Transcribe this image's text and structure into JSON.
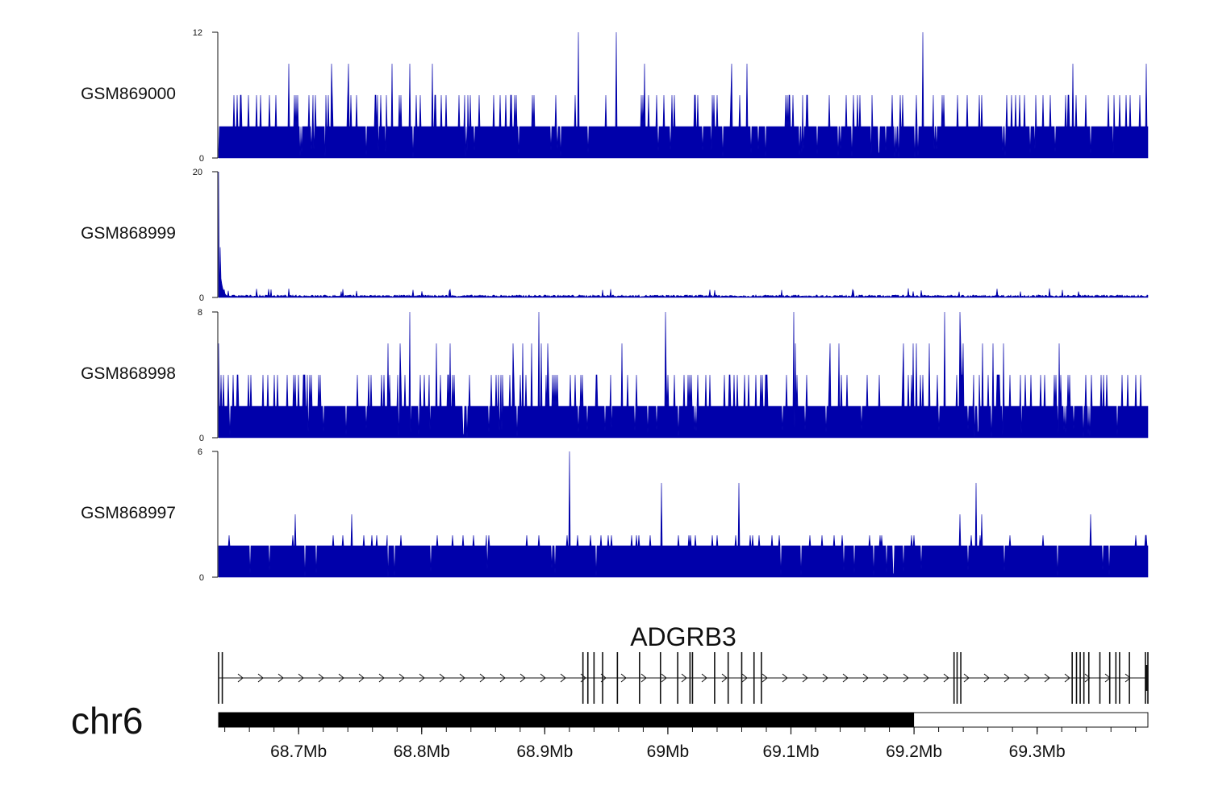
{
  "chart_data": {
    "type": "area",
    "chromosome": "chr6",
    "region_mb": [
      68.635,
      69.39
    ],
    "series_color": "#0000AA",
    "tracks": [
      {
        "name": "GSM869000",
        "ymax": 12,
        "ymin": 0,
        "baseline_level": 3,
        "spike_level": 6,
        "spike_density": 0.11,
        "tall_level": 9,
        "peaks": [
          {
            "x_mb": 68.927,
            "y": 12
          },
          {
            "x_mb": 68.958,
            "y": 12
          },
          {
            "x_mb": 69.207,
            "y": 12
          }
        ]
      },
      {
        "name": "GSM868999",
        "ymax": 20,
        "ymin": 0,
        "baseline_level": 0.4,
        "spike_level": 0.9,
        "spike_density": 0.02,
        "tall_level": 1.5,
        "peaks": [
          {
            "x_mb": 68.635,
            "y": 20
          },
          {
            "x_mb": 68.636,
            "y": 8
          },
          {
            "x_mb": 68.637,
            "y": 3
          }
        ]
      },
      {
        "name": "GSM868998",
        "ymax": 8,
        "ymin": 0,
        "baseline_level": 2,
        "spike_level": 4,
        "spike_density": 0.13,
        "tall_level": 6,
        "peaks": [
          {
            "x_mb": 68.79,
            "y": 8
          },
          {
            "x_mb": 68.895,
            "y": 8
          },
          {
            "x_mb": 68.998,
            "y": 8
          },
          {
            "x_mb": 69.102,
            "y": 8
          },
          {
            "x_mb": 69.225,
            "y": 8
          },
          {
            "x_mb": 69.2375,
            "y": 8
          }
        ]
      },
      {
        "name": "GSM868997",
        "ymax": 6,
        "ymin": 0,
        "baseline_level": 1.5,
        "spike_level": 2,
        "spike_density": 0.06,
        "tall_level": 3,
        "peaks": [
          {
            "x_mb": 68.92,
            "y": 6
          },
          {
            "x_mb": 68.995,
            "y": 4.5
          },
          {
            "x_mb": 69.058,
            "y": 4.5
          },
          {
            "x_mb": 69.2505,
            "y": 4.5
          }
        ]
      }
    ],
    "gene": {
      "name": "ADGRB3",
      "strand": "+",
      "start_mb": 68.635,
      "end_mb": 69.39,
      "exons_mb": [
        68.635,
        68.638,
        68.931,
        68.935,
        68.94,
        68.947,
        68.959,
        68.977,
        68.994,
        69.008,
        69.018,
        69.02,
        69.038,
        69.049,
        69.06,
        69.07,
        69.076,
        69.2325,
        69.235,
        69.238,
        69.3285,
        69.332,
        69.335,
        69.338,
        69.342,
        69.351,
        69.359,
        69.364,
        69.367,
        69.375,
        69.388,
        69.39
      ]
    },
    "ideogram": {
      "filled_until_mb": 69.2
    },
    "x_axis": {
      "ticks_mb": [
        68.7,
        68.8,
        68.9,
        69.0,
        69.1,
        69.2,
        69.3
      ],
      "tick_labels": [
        "68.7Mb",
        "68.8Mb",
        "68.9Mb",
        "69Mb",
        "69.1Mb",
        "69.2Mb",
        "69.3Mb"
      ]
    }
  }
}
